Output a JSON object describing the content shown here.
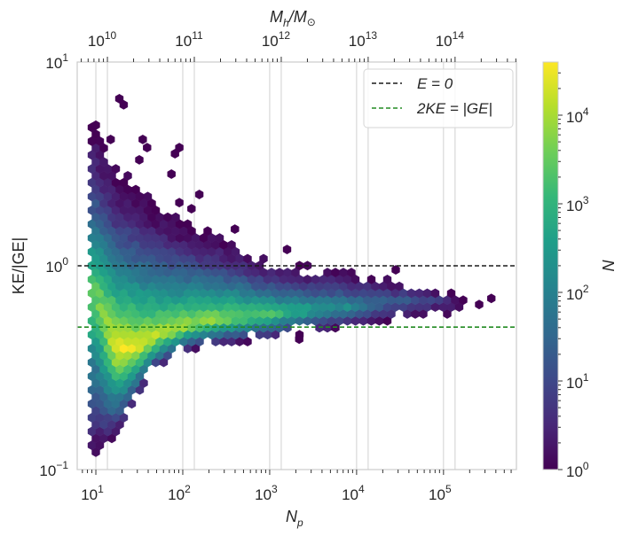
{
  "chart_data": {
    "type": "hexbin",
    "xlabel": "N_p",
    "ylabel": "KE/|GE|",
    "top_xlabel": "M_h/M_⊙",
    "colorbar_label": "N",
    "xscale": "log",
    "yscale": "log",
    "xlim": [
      6.1,
      690000
    ],
    "ylim": [
      0.1,
      10
    ],
    "top_axis_log10_mass_per_particle": 8.867,
    "colorbar_log10_range": [
      0,
      4.6
    ],
    "colormap": "viridis",
    "grid": "vertical at major x ticks",
    "legend_position": "top-right",
    "x_ticks": [
      {
        "base": "10",
        "exp": "1",
        "value": 10
      },
      {
        "base": "10",
        "exp": "2",
        "value": 100
      },
      {
        "base": "10",
        "exp": "3",
        "value": 1000
      },
      {
        "base": "10",
        "exp": "4",
        "value": 10000
      },
      {
        "base": "10",
        "exp": "5",
        "value": 100000
      }
    ],
    "top_ticks": [
      {
        "base": "10",
        "exp": "10",
        "value": 10000000000.0
      },
      {
        "base": "10",
        "exp": "11",
        "value": 100000000000.0
      },
      {
        "base": "10",
        "exp": "12",
        "value": 1000000000000.0
      },
      {
        "base": "10",
        "exp": "13",
        "value": 10000000000000.0
      },
      {
        "base": "10",
        "exp": "14",
        "value": 100000000000000.0
      }
    ],
    "y_ticks": [
      {
        "base": "10",
        "exp": "−1",
        "value": 0.1
      },
      {
        "base": "10",
        "exp": "0",
        "value": 1
      },
      {
        "base": "10",
        "exp": "1",
        "value": 10
      }
    ],
    "colorbar_ticks": [
      {
        "base": "10",
        "exp": "0",
        "value": 1
      },
      {
        "base": "10",
        "exp": "1",
        "value": 10
      },
      {
        "base": "10",
        "exp": "2",
        "value": 100
      },
      {
        "base": "10",
        "exp": "3",
        "value": 1000
      },
      {
        "base": "10",
        "exp": "4",
        "value": 10000
      }
    ],
    "reference_lines": [
      {
        "label_main": "E = 0",
        "value": 1.0,
        "color": "#1a1a1a"
      },
      {
        "label_main": "2KE = |GE|",
        "value": 0.5,
        "color": "#228b22"
      }
    ],
    "density_envelope_columns": {
      "fields": [
        "log10_Np",
        "log10_KEGE_min",
        "log10_KEGE_max",
        "log10_KEGE_peak",
        "log10_N_peak"
      ],
      "rows": [
        [
          1.0,
          -0.93,
          0.7,
          -0.13,
          3.5
        ],
        [
          1.22,
          -0.87,
          0.48,
          -0.39,
          4.6
        ],
        [
          1.43,
          -0.7,
          0.43,
          -0.41,
          4.5
        ],
        [
          1.68,
          -0.52,
          0.3,
          -0.35,
          4.2
        ],
        [
          2.0,
          -0.43,
          0.22,
          -0.3,
          4.0
        ],
        [
          2.45,
          -0.39,
          0.15,
          -0.26,
          3.8
        ],
        [
          2.96,
          -0.37,
          0.04,
          -0.24,
          3.3
        ],
        [
          3.47,
          -0.33,
          0.0,
          -0.22,
          2.7
        ],
        [
          3.98,
          -0.3,
          -0.02,
          -0.2,
          2.1
        ],
        [
          4.49,
          -0.26,
          -0.065,
          -0.17,
          1.4
        ],
        [
          5.0,
          -0.24,
          -0.11,
          -0.17,
          0.7
        ],
        [
          5.26,
          -0.22,
          -0.17,
          -0.19,
          0.3
        ]
      ]
    },
    "isolated_bins": {
      "fields": [
        "log10_Np",
        "log10_KEGE"
      ],
      "count": 1,
      "rows": [
        [
          1.27,
          0.82
        ],
        [
          1.32,
          0.79
        ],
        [
          1.0,
          0.69
        ],
        [
          1.17,
          0.62
        ],
        [
          1.54,
          0.62
        ],
        [
          1.59,
          0.58
        ],
        [
          1.96,
          0.58
        ],
        [
          1.91,
          0.55
        ],
        [
          1.5,
          0.52
        ],
        [
          1.87,
          0.45
        ],
        [
          2.19,
          0.35
        ],
        [
          1.96,
          0.31
        ],
        [
          2.1,
          0.28
        ],
        [
          2.6,
          0.18
        ],
        [
          3.2,
          0.08
        ],
        [
          4.45,
          -0.02
        ],
        [
          5.55,
          -0.16
        ],
        [
          5.41,
          -0.19
        ],
        [
          3.34,
          -0.36
        ]
      ]
    }
  },
  "labels": {
    "xlabel_main": "N",
    "xlabel_sub": "p",
    "ylabel": "KE/|GE|",
    "top_main1": "M",
    "top_sub": "h",
    "top_main2": "/M",
    "top_sun": "⊙",
    "colorbar": "N",
    "legend_e0": "E = 0",
    "legend_virial": "2KE = |GE|"
  },
  "colors": {
    "e0_line": "#1a1a1a",
    "virial_line": "#228b22",
    "frame": "#cccccc",
    "grid": "#d0d0d0"
  }
}
